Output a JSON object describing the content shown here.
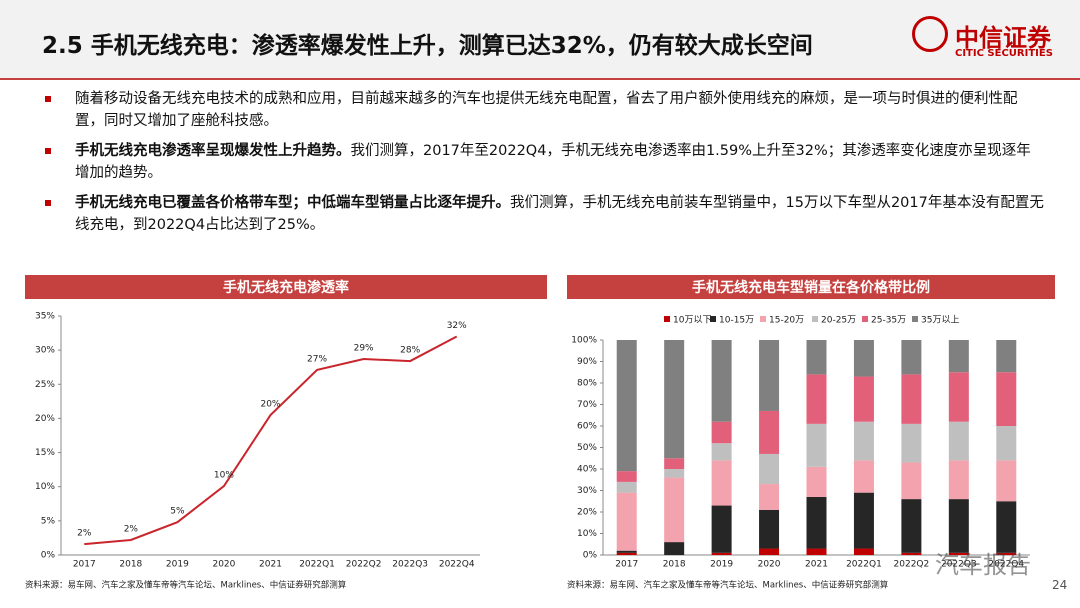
{
  "header": {
    "title": "2.5 手机无线充电：渗透率爆发性上升，测算已达32%，仍有较大成长空间",
    "logo": "中信证券",
    "logo_en": "CITIC SECURITIES"
  },
  "bullets": [
    {
      "bold": "",
      "text": "随着移动设备无线充电技术的成熟和应用，目前越来越多的汽车也提供无线充电配置，省去了用户额外使用线充的麻烦，是一项与时俱进的便利性配置，同时又增加了座舱科技感。"
    },
    {
      "bold": "手机无线充电渗透率呈现爆发性上升趋势。",
      "text": "我们测算，2017年至2022Q4，手机无线充电渗透率由1.59%上升至32%；其渗透率变化速度亦呈现逐年增加的趋势。"
    },
    {
      "bold": "手机无线充电已覆盖各价格带车型；中低端车型销量占比逐年提升。",
      "text": "我们测算，手机无线充电前装车型销量中，15万以下车型从2017年基本没有配置无线充电，到2022Q4占比达到了25%。"
    }
  ],
  "chart_data": [
    {
      "type": "line",
      "title": "手机无线充电渗透率",
      "categories": [
        "2017",
        "2018",
        "2019",
        "2020",
        "2021",
        "2022Q1",
        "2022Q2",
        "2022Q3",
        "2022Q4"
      ],
      "values": [
        1.59,
        2.2,
        4.8,
        10.1,
        20.5,
        27.1,
        28.7,
        28.4,
        32
      ],
      "value_labels": [
        "2%",
        "2%",
        "5%",
        "10%",
        "20%",
        "27%",
        "29%",
        "28%",
        "32%"
      ],
      "color": "#c9252c",
      "ylim": [
        0,
        35
      ],
      "yticks": [
        {
          "value": 0,
          "label": "0%"
        },
        {
          "value": 5,
          "label": "5%"
        },
        {
          "value": 10,
          "label": "10%"
        },
        {
          "value": 15,
          "label": "15%"
        },
        {
          "value": 20,
          "label": "20%"
        },
        {
          "value": 25,
          "label": "25%"
        },
        {
          "value": 30,
          "label": "30%"
        },
        {
          "value": 35,
          "label": "35%"
        }
      ],
      "source": "资料来源：易车网、汽车之家及懂车帝等汽车论坛、Marklines、中信证券研究部测算"
    },
    {
      "type": "stacked_bar",
      "title": "手机无线充电车型销量在各价格带比例",
      "categories": [
        "2017",
        "2018",
        "2019",
        "2020",
        "2021",
        "2022Q1",
        "2022Q2",
        "2022Q3",
        "2022Q4"
      ],
      "series": [
        {
          "name": "10万以下",
          "color": "#c00000",
          "values": [
            1,
            0,
            1,
            3,
            3,
            3,
            1,
            1,
            1
          ]
        },
        {
          "name": "10-15万",
          "color": "#262626",
          "values": [
            1,
            6,
            22,
            18,
            24,
            26,
            25,
            25,
            24
          ]
        },
        {
          "name": "15-20万",
          "color": "#f2a3ae",
          "values": [
            27,
            30,
            21,
            12,
            14,
            15,
            17,
            18,
            19
          ]
        },
        {
          "name": "20-25万",
          "color": "#bfbfbf",
          "values": [
            5,
            4,
            8,
            14,
            20,
            18,
            18,
            18,
            16
          ]
        },
        {
          "name": "25-35万",
          "color": "#e3607a",
          "values": [
            5,
            5,
            10,
            20,
            23,
            21,
            23,
            23,
            25
          ]
        },
        {
          "name": "35万以上",
          "color": "#808080",
          "values": [
            61,
            55,
            38,
            33,
            16,
            17,
            16,
            15,
            15
          ]
        }
      ],
      "ylim": [
        0,
        100
      ],
      "yticks": [
        {
          "value": 0,
          "label": "0%"
        },
        {
          "value": 10,
          "label": "10%"
        },
        {
          "value": 20,
          "label": "20%"
        },
        {
          "value": 30,
          "label": "30%"
        },
        {
          "value": 40,
          "label": "40%"
        },
        {
          "value": 50,
          "label": "50%"
        },
        {
          "value": 60,
          "label": "60%"
        },
        {
          "value": 70,
          "label": "70%"
        },
        {
          "value": 80,
          "label": "80%"
        },
        {
          "value": 90,
          "label": "90%"
        },
        {
          "value": 100,
          "label": "100%"
        }
      ],
      "source": "资料来源：易车网、汽车之家及懂车帝等汽车论坛、Marklines、中信证券研究部测算"
    }
  ],
  "footer": {
    "page": "24",
    "watermark": "汽车报告"
  }
}
